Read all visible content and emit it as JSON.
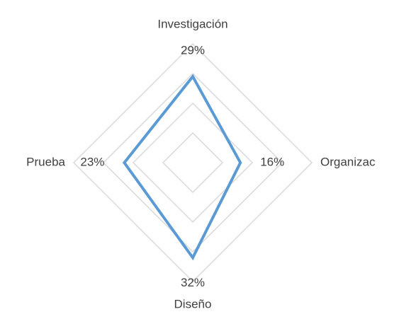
{
  "chart_data": {
    "type": "radar",
    "categories": [
      "Investigación",
      "Organizac",
      "Diseño",
      "Prueba"
    ],
    "series": [
      {
        "color": "#5b9bd5",
        "values": [
          29,
          16,
          32,
          23
        ],
        "value_labels": [
          "29%",
          "16%",
          "32%",
          "23%"
        ]
      }
    ],
    "ylim": [
      0,
      40
    ],
    "yticks": [
      0,
      10,
      20,
      30,
      40
    ],
    "grid": true
  }
}
